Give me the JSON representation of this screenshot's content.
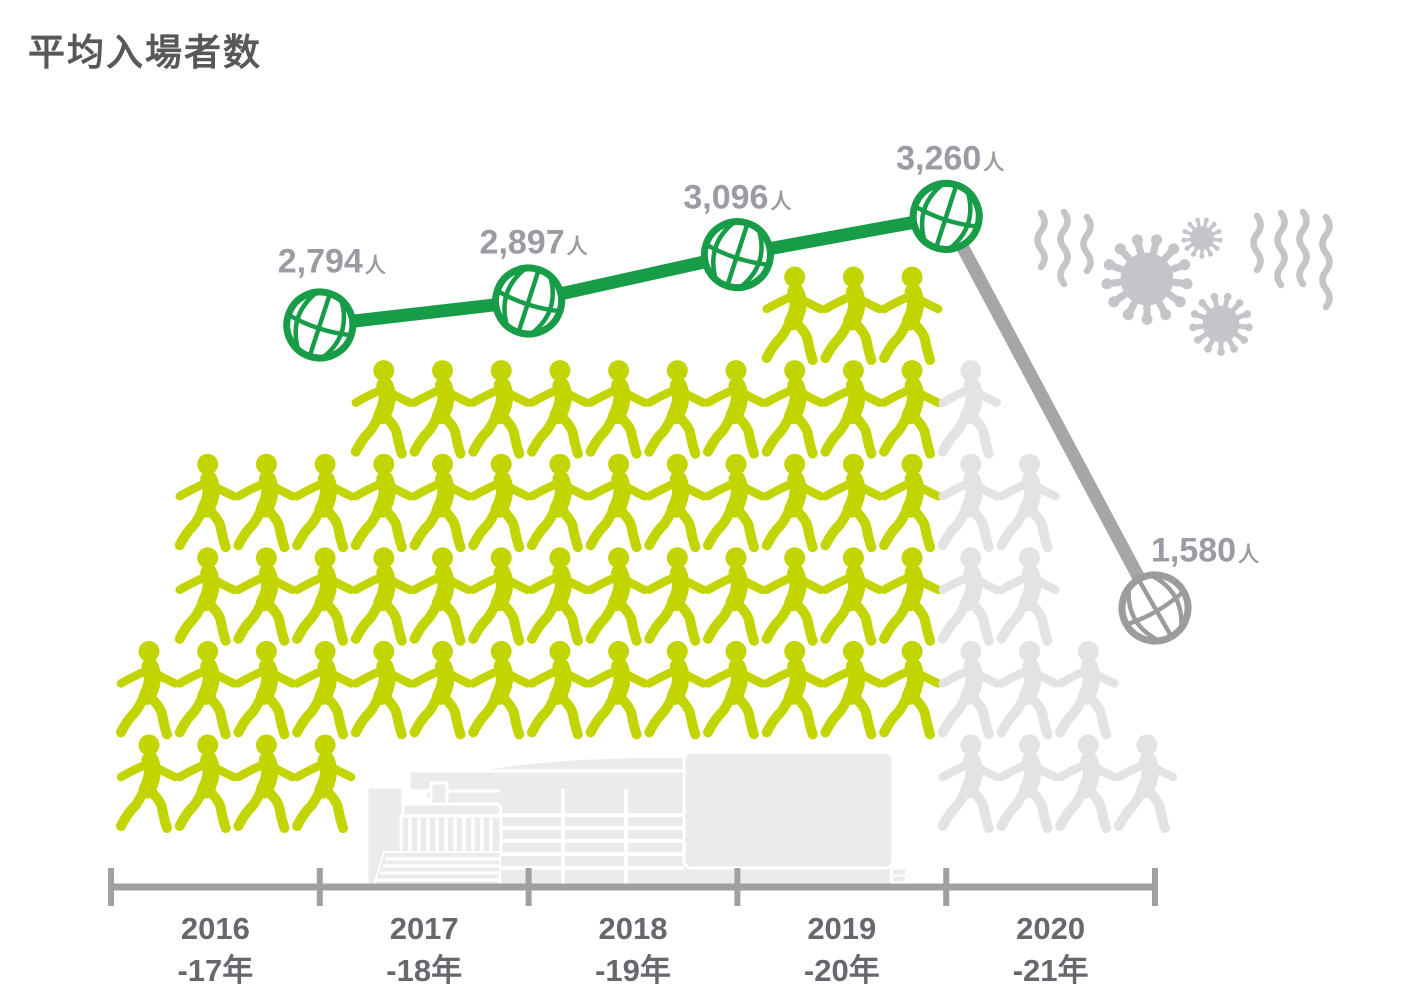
{
  "page": {
    "title": "平均入場者数",
    "background": "#ffffff"
  },
  "colors": {
    "title_text": "#58585b",
    "value_label": "#9b9ca3",
    "axis_line": "#a0a0a0",
    "axis_label": "#67676e",
    "line_active": "#179c47",
    "line_inactive": "#a6a6a6",
    "ball_inactive": "#9c9c9c",
    "person_active": "#c3d500",
    "person_inactive": "#e3e3e3",
    "virus": "#c5c5c9",
    "arena": "#ebebeb"
  },
  "chart_data": {
    "type": "line",
    "title": "平均入場者数",
    "unit": "人",
    "categories": [
      "2016-17年",
      "2017-18年",
      "2018-19年",
      "2019-20年",
      "2020-21年"
    ],
    "x_tick_labels": [
      [
        "2016",
        "-17年"
      ],
      [
        "2017",
        "-18年"
      ],
      [
        "2018",
        "-19年"
      ],
      [
        "2019",
        "-20年"
      ],
      [
        "2020",
        "-21年"
      ]
    ],
    "series": [
      {
        "name": "平均入場者数",
        "values": [
          2794,
          2897,
          3096,
          3260,
          1580
        ]
      }
    ],
    "value_labels": [
      "2,794",
      "2,897",
      "3,096",
      "3,260",
      "1,580"
    ],
    "point_styles": [
      "active",
      "active",
      "active",
      "active",
      "inactive"
    ],
    "marker_icon": "basketball-icon",
    "legend": "none",
    "grid": false,
    "pictogram": {
      "icon": "walking-person-icon",
      "active_rows": [
        {
          "row": 0,
          "start": 11,
          "count": 3
        },
        {
          "row": 1,
          "start": 4,
          "count": 10
        },
        {
          "row": 2,
          "start": 1,
          "count": 13
        },
        {
          "row": 3,
          "start": 1,
          "count": 13
        },
        {
          "row": 4,
          "start": 0,
          "count": 14
        },
        {
          "row": 5,
          "start": 0,
          "count": 4
        }
      ],
      "inactive_rows": [
        {
          "row": 1,
          "start": 14,
          "count": 1
        },
        {
          "row": 2,
          "start": 14,
          "count": 2
        },
        {
          "row": 3,
          "start": 14,
          "count": 2
        },
        {
          "row": 4,
          "start": 14,
          "count": 3
        },
        {
          "row": 5,
          "start": 14,
          "count": 4
        }
      ]
    },
    "decorations": [
      "virus-icon",
      "virus-icon",
      "virus-icon",
      "squiggle-icon",
      "arena-illustration"
    ]
  }
}
